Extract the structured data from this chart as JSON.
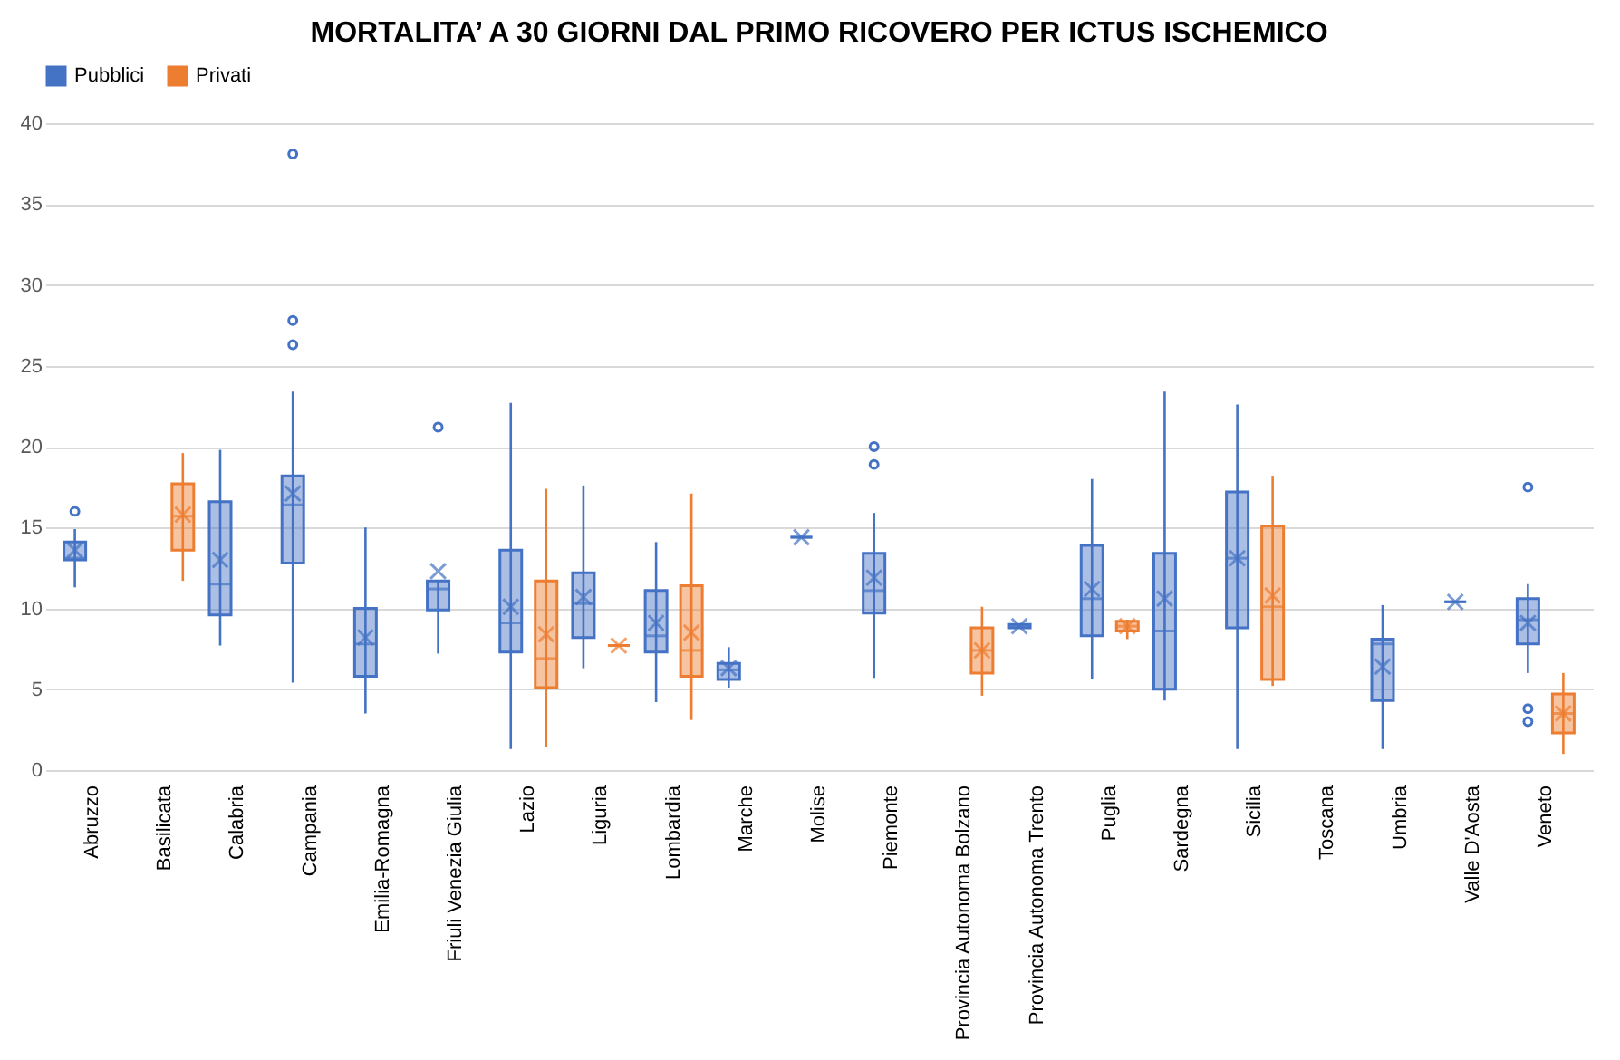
{
  "chart_data": {
    "type": "box",
    "title": "MORTALITA’ A 30 GIORNI DAL PRIMO RICOVERO PER ICTUS ISCHEMICO",
    "categories": [
      "Abruzzo",
      "Basilicata",
      "Calabria",
      "Campania",
      "Emilia-Romagna",
      "Friuli Venezia Giulia",
      "Lazio",
      "Liguria",
      "Lombardia",
      "Marche",
      "Molise",
      "Piemonte",
      "Provincia Autonoma Bolzano",
      "Provincia Autonoma Trento",
      "Puglia",
      "Sardegna",
      "Sicilia",
      "Toscana",
      "Umbria",
      "Valle D'Aosta",
      "Veneto"
    ],
    "ylim": [
      0,
      40
    ],
    "yticks": [
      0,
      5,
      10,
      15,
      20,
      25,
      30,
      35,
      40
    ],
    "grid": "y",
    "legend": "top",
    "marker": "circle",
    "series": [
      {
        "name": "Pubblici",
        "color": "#4472c4",
        "boxes": [
          {
            "low": 11.3,
            "q1": 13.0,
            "median": 13.1,
            "q3": 14.1,
            "high": 14.9,
            "mean": 13.6,
            "outliers": [
              16.0
            ]
          },
          null,
          {
            "low": 7.7,
            "q1": 9.6,
            "median": 11.5,
            "q3": 16.6,
            "high": 19.8,
            "mean": 13.0
          },
          {
            "low": 5.4,
            "q1": 12.8,
            "median": 16.4,
            "q3": 18.2,
            "high": 23.4,
            "mean": 17.1,
            "outliers": [
              38.1,
              27.8,
              26.3
            ]
          },
          {
            "low": 3.5,
            "q1": 5.8,
            "median": 7.8,
            "q3": 10.0,
            "high": 15.0,
            "mean": 8.2
          },
          {
            "low": 7.2,
            "q1": 9.9,
            "median": 11.2,
            "q3": 11.7,
            "high": 11.7,
            "mean": 12.3,
            "outliers": [
              21.2
            ]
          },
          {
            "low": 1.3,
            "q1": 7.3,
            "median": 9.1,
            "q3": 13.6,
            "high": 22.7,
            "mean": 10.1
          },
          {
            "low": 6.3,
            "q1": 8.2,
            "median": 10.3,
            "q3": 12.2,
            "high": 17.6,
            "mean": 10.7
          },
          {
            "low": 4.2,
            "q1": 7.3,
            "median": 8.3,
            "q3": 11.1,
            "high": 14.1,
            "mean": 9.1
          },
          {
            "low": 5.1,
            "q1": 5.6,
            "median": 6.2,
            "q3": 6.6,
            "high": 7.6,
            "mean": 6.3
          },
          {
            "low": 14.4,
            "q1": 14.4,
            "median": 14.4,
            "q3": 14.4,
            "high": 14.4,
            "mean": 14.4
          },
          {
            "low": 5.7,
            "q1": 9.7,
            "median": 11.1,
            "q3": 13.4,
            "high": 15.9,
            "mean": 11.9,
            "outliers": [
              20.0,
              18.9
            ]
          },
          null,
          {
            "low": 8.8,
            "q1": 8.8,
            "median": 8.9,
            "q3": 9.0,
            "high": 9.0,
            "mean": 8.9
          },
          {
            "low": 5.6,
            "q1": 8.3,
            "median": 10.6,
            "q3": 13.9,
            "high": 18.0,
            "mean": 11.2
          },
          {
            "low": 4.3,
            "q1": 5.0,
            "median": 8.6,
            "q3": 13.4,
            "high": 23.4,
            "mean": 10.6
          },
          {
            "low": 1.3,
            "q1": 8.8,
            "median": 13.1,
            "q3": 17.2,
            "high": 22.6,
            "mean": 13.1
          },
          null,
          {
            "low": 1.3,
            "q1": 4.3,
            "median": 7.8,
            "q3": 8.1,
            "high": 10.2,
            "mean": 6.4
          },
          {
            "low": 10.4,
            "q1": 10.4,
            "median": 10.4,
            "q3": 10.4,
            "high": 10.4,
            "mean": 10.4
          },
          {
            "low": 6.0,
            "q1": 7.8,
            "median": 9.3,
            "q3": 10.6,
            "high": 11.5,
            "mean": 9.1,
            "outliers": [
              17.5,
              3.8,
              3.0
            ]
          }
        ]
      },
      {
        "name": "Privati",
        "color": "#ed7d31",
        "boxes": [
          null,
          {
            "low": 11.7,
            "q1": 13.6,
            "median": 15.7,
            "q3": 17.7,
            "high": 19.6,
            "mean": 15.8
          },
          null,
          null,
          null,
          null,
          {
            "low": 1.4,
            "q1": 5.1,
            "median": 6.9,
            "q3": 11.7,
            "high": 17.4,
            "mean": 8.4
          },
          {
            "low": 7.7,
            "q1": 7.7,
            "median": 7.7,
            "q3": 7.7,
            "high": 7.7,
            "mean": 7.7
          },
          {
            "low": 3.1,
            "q1": 5.8,
            "median": 7.4,
            "q3": 11.4,
            "high": 17.1,
            "mean": 8.5
          },
          null,
          null,
          null,
          {
            "low": 4.6,
            "q1": 6.0,
            "median": 7.4,
            "q3": 8.8,
            "high": 10.1,
            "mean": 7.4
          },
          null,
          {
            "low": 8.1,
            "q1": 8.6,
            "median": 8.9,
            "q3": 9.2,
            "high": 9.3,
            "mean": 8.9
          },
          null,
          {
            "low": 5.2,
            "q1": 5.6,
            "median": 10.1,
            "q3": 15.1,
            "high": 18.2,
            "mean": 10.8
          },
          null,
          null,
          null,
          {
            "low": 1.0,
            "q1": 2.3,
            "median": 3.5,
            "q3": 4.7,
            "high": 6.0,
            "mean": 3.5
          }
        ]
      }
    ]
  }
}
